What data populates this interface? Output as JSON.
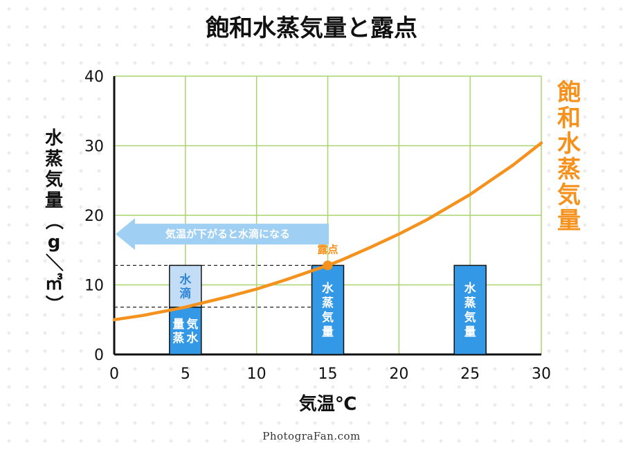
{
  "title": "飽和水蒸気量と露点",
  "credit": "PhotograFan.com",
  "colors": {
    "curve": "#f5921e",
    "grid": "#a9d46d",
    "bar_dark": "#3399e6",
    "bar_light": "#c3ddf6",
    "arrow": "#9fcff2",
    "droplet_text": "#2f86d6"
  },
  "chart_data": {
    "type": "line",
    "title": "飽和水蒸気量と露点",
    "xlabel": "気温℃",
    "ylabel": "水蒸気量（g／㎥）",
    "xlim": [
      0,
      30
    ],
    "ylim": [
      0,
      40
    ],
    "x_ticks": [
      "0",
      "5",
      "10",
      "15",
      "20",
      "25",
      "30"
    ],
    "y_ticks": [
      "0",
      "10",
      "20",
      "30",
      "40"
    ],
    "grid": true,
    "series": [
      {
        "name": "飽和水蒸気量",
        "x": [
          0,
          2,
          4,
          5,
          6,
          8,
          10,
          12,
          14,
          15,
          16,
          18,
          20,
          22,
          24,
          25,
          26,
          28,
          30
        ],
        "y": [
          5.0,
          5.6,
          6.4,
          6.8,
          7.3,
          8.3,
          9.4,
          10.7,
          12.1,
          12.8,
          13.6,
          15.4,
          17.3,
          19.4,
          21.8,
          23.0,
          24.4,
          27.2,
          30.4
        ]
      }
    ],
    "bars": [
      {
        "x": 5,
        "vapor": 6.8,
        "total": 12.8,
        "vapor_label": "気水量蒸",
        "droplet_label": "水滴"
      },
      {
        "x": 15,
        "vapor": 12.8,
        "label": "水蒸気量"
      },
      {
        "x": 25,
        "vapor": 12.8,
        "label": "水蒸気量"
      }
    ],
    "reference_lines": [
      12.8,
      6.8
    ],
    "annotations": {
      "arrow_text": "気温が下がると水滴になる",
      "dew_point_label": "露点",
      "dew_point": {
        "x": 15,
        "y": 12.8
      }
    }
  }
}
